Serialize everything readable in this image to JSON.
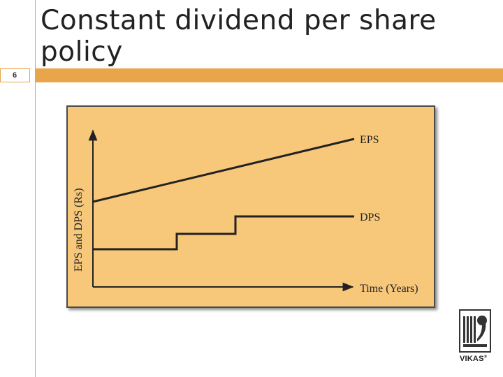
{
  "slide": {
    "number": "6",
    "title": "Constant dividend per share policy"
  },
  "figure": {
    "y_axis_label": "EPS and DPS (Rs)",
    "x_axis_label": "Time (Years)",
    "eps_label": "EPS",
    "dps_label": "DPS",
    "colors": {
      "background": "#f8c87a",
      "border": "#4a4a4a",
      "line": "#222222"
    }
  },
  "logo": {
    "icon": "vikas-publisher-logo",
    "text": "VIKAS",
    "mark": "®"
  }
}
